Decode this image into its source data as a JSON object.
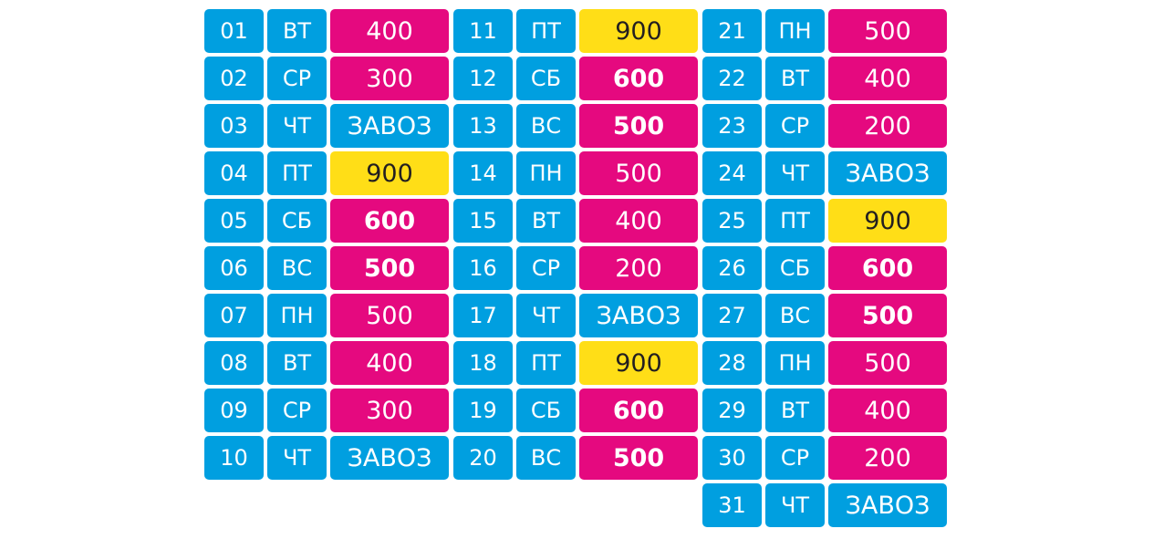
{
  "colors": {
    "blue": "#009fe0",
    "pink": "#e5097f",
    "yellow": "#ffde17"
  },
  "schedule": [
    {
      "day": "01",
      "weekday": "ВТ",
      "value": "400",
      "color": "pink",
      "bold": false
    },
    {
      "day": "02",
      "weekday": "СР",
      "value": "300",
      "color": "pink",
      "bold": false
    },
    {
      "day": "03",
      "weekday": "ЧТ",
      "value": "ЗАВОЗ",
      "color": "blue",
      "bold": false
    },
    {
      "day": "04",
      "weekday": "ПТ",
      "value": "900",
      "color": "yellow",
      "bold": false
    },
    {
      "day": "05",
      "weekday": "СБ",
      "value": "600",
      "color": "pink",
      "bold": true
    },
    {
      "day": "06",
      "weekday": "ВС",
      "value": "500",
      "color": "pink",
      "bold": true
    },
    {
      "day": "07",
      "weekday": "ПН",
      "value": "500",
      "color": "pink",
      "bold": false
    },
    {
      "day": "08",
      "weekday": "ВТ",
      "value": "400",
      "color": "pink",
      "bold": false
    },
    {
      "day": "09",
      "weekday": "СР",
      "value": "300",
      "color": "pink",
      "bold": false
    },
    {
      "day": "10",
      "weekday": "ЧТ",
      "value": "ЗАВОЗ",
      "color": "blue",
      "bold": false
    },
    {
      "day": "11",
      "weekday": "ПТ",
      "value": "900",
      "color": "yellow",
      "bold": false
    },
    {
      "day": "12",
      "weekday": "СБ",
      "value": "600",
      "color": "pink",
      "bold": true
    },
    {
      "day": "13",
      "weekday": "ВС",
      "value": "500",
      "color": "pink",
      "bold": true
    },
    {
      "day": "14",
      "weekday": "ПН",
      "value": "500",
      "color": "pink",
      "bold": false
    },
    {
      "day": "15",
      "weekday": "ВТ",
      "value": "400",
      "color": "pink",
      "bold": false
    },
    {
      "day": "16",
      "weekday": "СР",
      "value": "200",
      "color": "pink",
      "bold": false
    },
    {
      "day": "17",
      "weekday": "ЧТ",
      "value": "ЗАВОЗ",
      "color": "blue",
      "bold": false
    },
    {
      "day": "18",
      "weekday": "ПТ",
      "value": "900",
      "color": "yellow",
      "bold": false
    },
    {
      "day": "19",
      "weekday": "СБ",
      "value": "600",
      "color": "pink",
      "bold": true
    },
    {
      "day": "20",
      "weekday": "ВС",
      "value": "500",
      "color": "pink",
      "bold": true
    },
    {
      "day": "21",
      "weekday": "ПН",
      "value": "500",
      "color": "pink",
      "bold": false
    },
    {
      "day": "22",
      "weekday": "ВТ",
      "value": "400",
      "color": "pink",
      "bold": false
    },
    {
      "day": "23",
      "weekday": "СР",
      "value": "200",
      "color": "pink",
      "bold": false
    },
    {
      "day": "24",
      "weekday": "ЧТ",
      "value": "ЗАВОЗ",
      "color": "blue",
      "bold": false
    },
    {
      "day": "25",
      "weekday": "ПТ",
      "value": "900",
      "color": "yellow",
      "bold": false
    },
    {
      "day": "26",
      "weekday": "СБ",
      "value": "600",
      "color": "pink",
      "bold": true
    },
    {
      "day": "27",
      "weekday": "ВС",
      "value": "500",
      "color": "pink",
      "bold": true
    },
    {
      "day": "28",
      "weekday": "ПН",
      "value": "500",
      "color": "pink",
      "bold": false
    },
    {
      "day": "29",
      "weekday": "ВТ",
      "value": "400",
      "color": "pink",
      "bold": false
    },
    {
      "day": "30",
      "weekday": "СР",
      "value": "200",
      "color": "pink",
      "bold": false
    },
    {
      "day": "31",
      "weekday": "ЧТ",
      "value": "ЗАВОЗ",
      "color": "blue",
      "bold": false
    }
  ]
}
